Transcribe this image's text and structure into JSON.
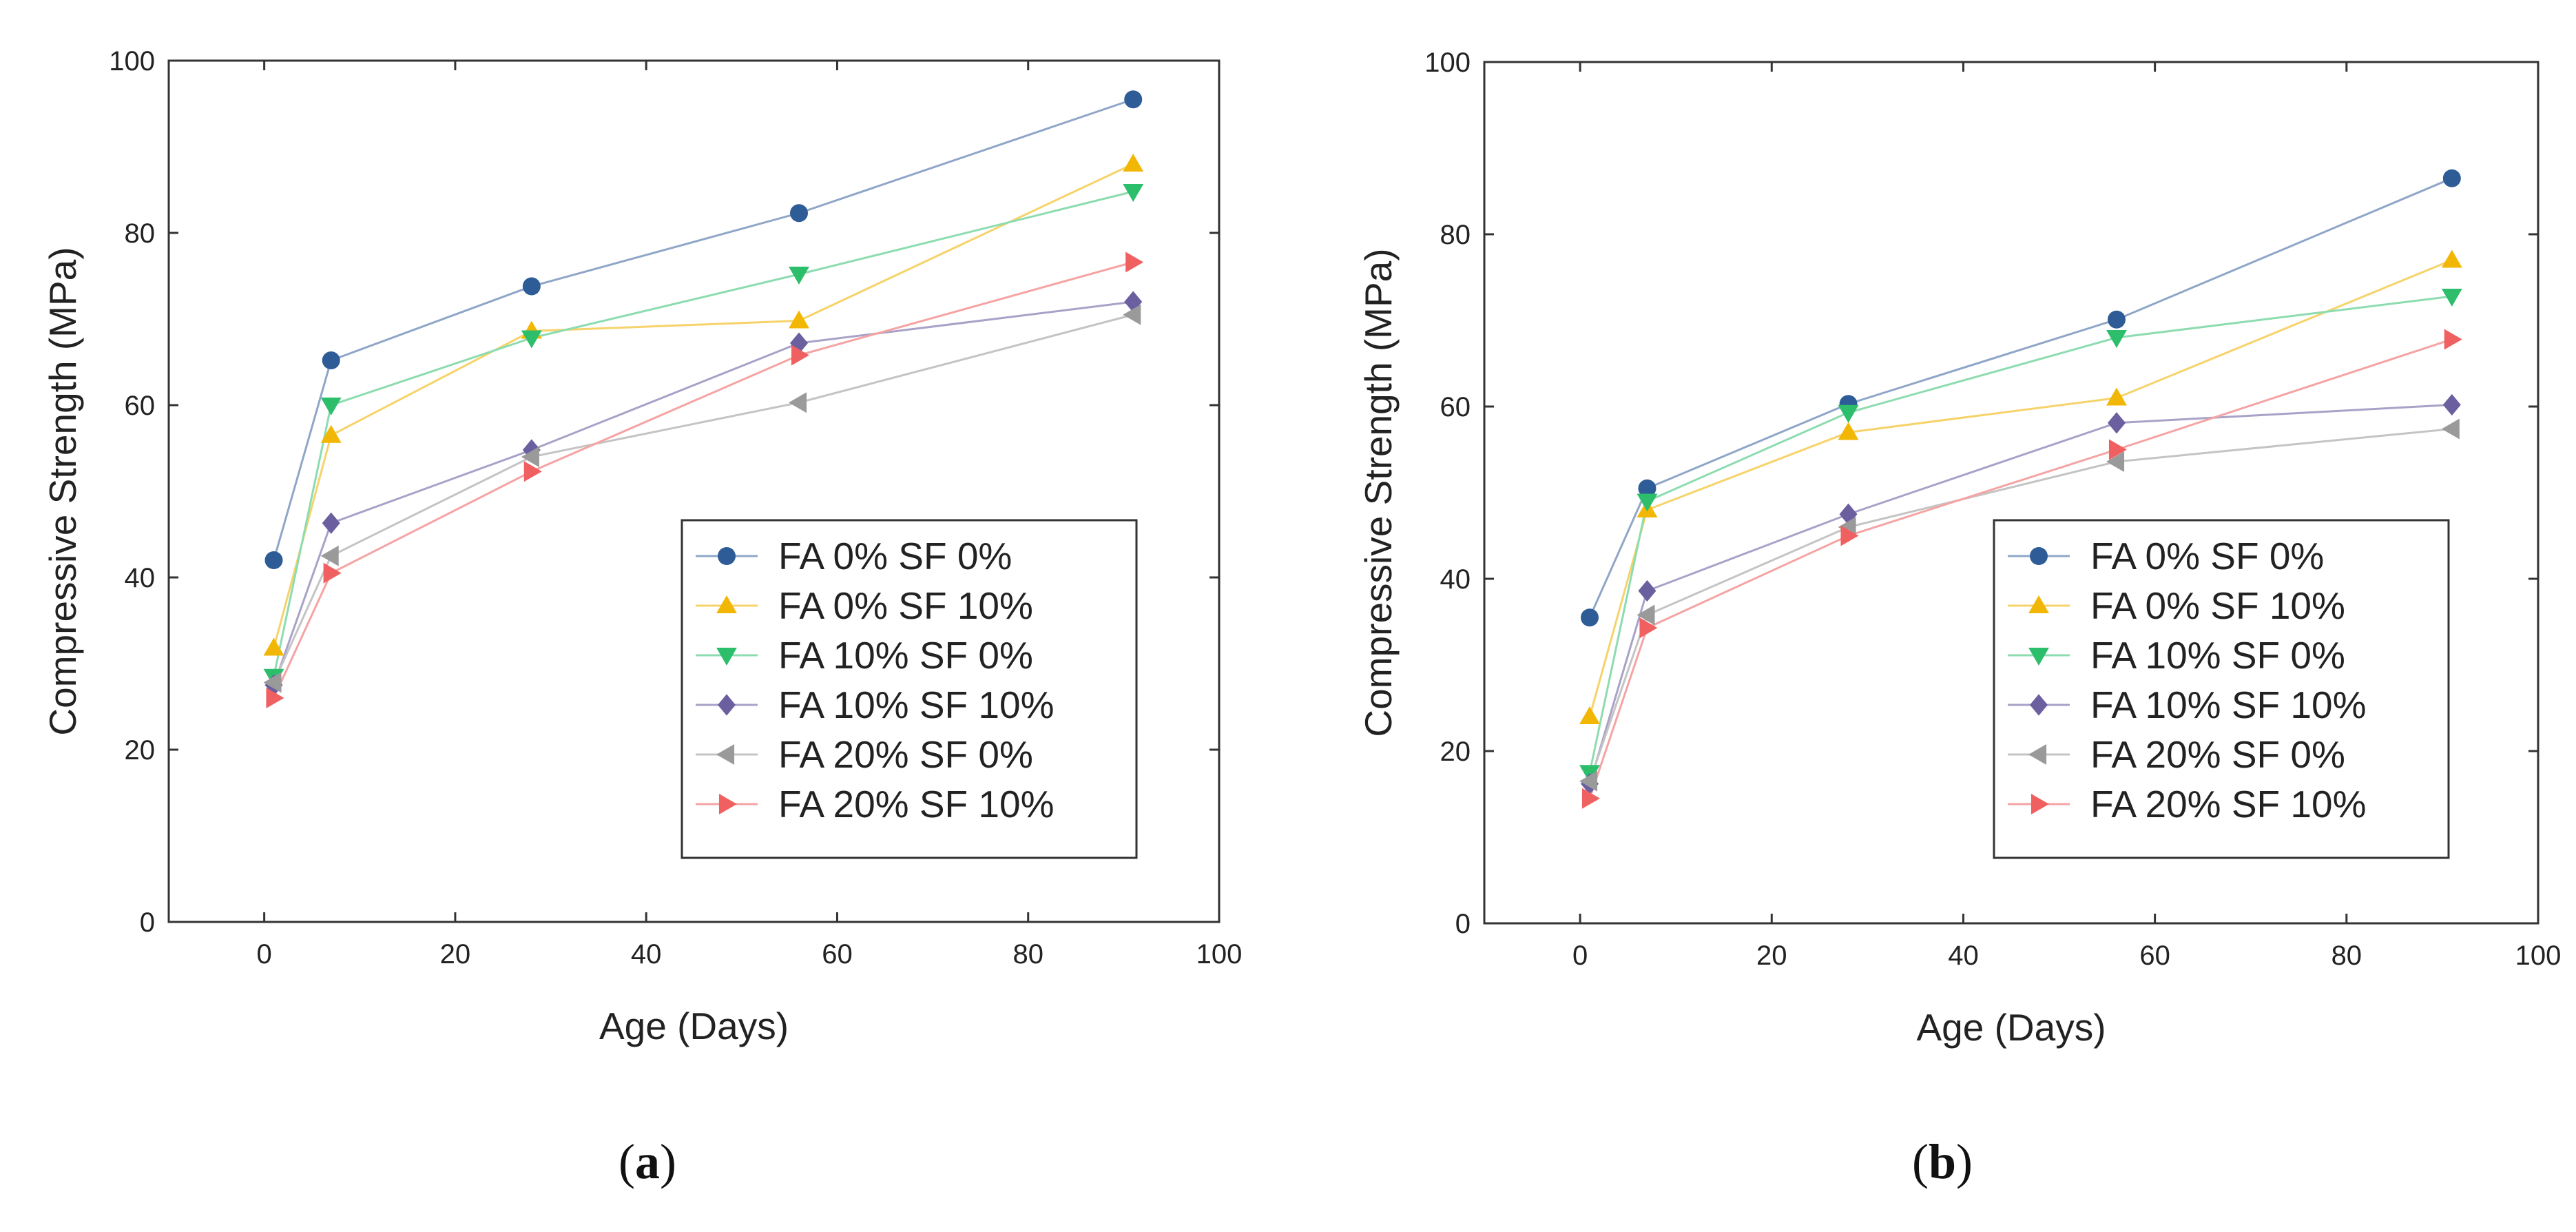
{
  "chart_data": [
    {
      "type": "line",
      "panel": "a",
      "caption": "(a)",
      "caption_letter": "a",
      "xlabel": "Age (Days)",
      "ylabel": "Compressive Strength (MPa)",
      "xlim": [
        -10,
        100
      ],
      "ylim": [
        0,
        100
      ],
      "xticks": [
        0,
        20,
        40,
        60,
        80,
        100
      ],
      "yticks": [
        0,
        20,
        40,
        60,
        80,
        100
      ],
      "legend_position": "lower-right",
      "x": [
        1,
        7,
        28,
        56,
        91
      ],
      "series": [
        {
          "name": "FA 0% SF 0%",
          "marker": "circle",
          "color": "#2e5c96",
          "line_color": "#8fa6c8",
          "values": [
            42,
            65.2,
            73.8,
            82.3,
            95.5
          ]
        },
        {
          "name": "FA 0% SF 10%",
          "marker": "triangle-up",
          "color": "#f2b705",
          "line_color": "#f6d36a",
          "values": [
            31.8,
            56.5,
            68.6,
            69.8,
            88
          ]
        },
        {
          "name": "FA 10% SF 0%",
          "marker": "triangle-down",
          "color": "#2dbe6c",
          "line_color": "#8ddcb0",
          "values": [
            28.5,
            60,
            67.8,
            75.2,
            84.8
          ]
        },
        {
          "name": "FA 10% SF 10%",
          "marker": "diamond",
          "color": "#6b5fa0",
          "line_color": "#a9a2c8",
          "values": [
            27.5,
            46.3,
            54.8,
            67.2,
            72
          ]
        },
        {
          "name": "FA 20% SF 0%",
          "marker": "triangle-left",
          "color": "#9a9a9a",
          "line_color": "#c4c4c4",
          "values": [
            27.8,
            42.5,
            54,
            60.3,
            70.5
          ]
        },
        {
          "name": "FA 20% SF 10%",
          "marker": "triangle-right",
          "color": "#f06060",
          "line_color": "#f5a3a3",
          "values": [
            26,
            40.5,
            52.3,
            65.8,
            76.6
          ]
        }
      ]
    },
    {
      "type": "line",
      "panel": "b",
      "caption": "(b)",
      "caption_letter": "b",
      "xlabel": "Age (Days)",
      "ylabel": "Compressive Strength (MPa)",
      "xlim": [
        -10,
        100
      ],
      "ylim": [
        0,
        100
      ],
      "xticks": [
        0,
        20,
        40,
        60,
        80,
        100
      ],
      "yticks": [
        0,
        20,
        40,
        60,
        80,
        100
      ],
      "legend_position": "lower-right",
      "x": [
        1,
        7,
        28,
        56,
        91
      ],
      "series": [
        {
          "name": "FA 0% SF 0%",
          "marker": "circle",
          "color": "#2e5c96",
          "line_color": "#8fa6c8",
          "values": [
            35.5,
            50.5,
            60.3,
            70.1,
            86.5
          ]
        },
        {
          "name": "FA 0% SF 10%",
          "marker": "triangle-up",
          "color": "#f2b705",
          "line_color": "#f6d36a",
          "values": [
            24,
            48,
            57,
            61,
            77
          ]
        },
        {
          "name": "FA 10% SF 0%",
          "marker": "triangle-down",
          "color": "#2dbe6c",
          "line_color": "#8ddcb0",
          "values": [
            17.5,
            49,
            59.3,
            68,
            72.8
          ]
        },
        {
          "name": "FA 10% SF 10%",
          "marker": "diamond",
          "color": "#6b5fa0",
          "line_color": "#a9a2c8",
          "values": [
            16.2,
            38.6,
            47.5,
            58.1,
            60.2
          ]
        },
        {
          "name": "FA 20% SF 0%",
          "marker": "triangle-left",
          "color": "#9a9a9a",
          "line_color": "#c4c4c4",
          "values": [
            16.5,
            35.8,
            46,
            53.6,
            57.4
          ]
        },
        {
          "name": "FA 20% SF 10%",
          "marker": "triangle-right",
          "color": "#f06060",
          "line_color": "#f5a3a3",
          "values": [
            14.5,
            34.3,
            45,
            55,
            67.8
          ]
        }
      ]
    }
  ]
}
